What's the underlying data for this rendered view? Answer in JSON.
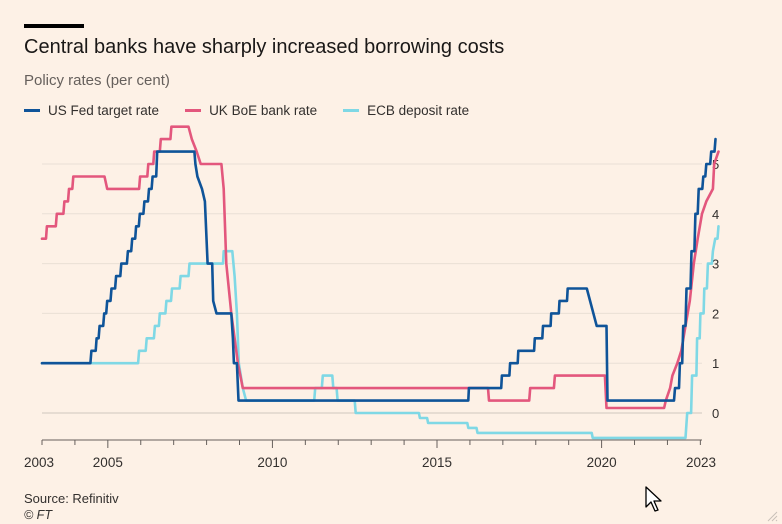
{
  "chart_data": {
    "type": "line",
    "title": "Central banks have sharply increased borrowing costs",
    "subtitle": "Policy rates (per cent)",
    "source": "Source: Refinitiv",
    "copyright": "© FT",
    "xlim": [
      2003,
      2023.05
    ],
    "ylim": [
      -0.5,
      5.6
    ],
    "x_ticks": [
      2003,
      2005,
      2010,
      2015,
      2020,
      2023
    ],
    "y_ticks": [
      0,
      1,
      2,
      3,
      4,
      5
    ],
    "grid": true,
    "legend_position": "top",
    "series": [
      {
        "name": "US Fed target rate",
        "color": "#0f5499",
        "points": [
          [
            2003.0,
            1.0
          ],
          [
            2003.75,
            1.0
          ],
          [
            2004.47,
            1.0
          ],
          [
            2004.5,
            1.25
          ],
          [
            2004.63,
            1.25
          ],
          [
            2004.66,
            1.5
          ],
          [
            2004.72,
            1.5
          ],
          [
            2004.75,
            1.75
          ],
          [
            2004.86,
            1.75
          ],
          [
            2004.89,
            2.0
          ],
          [
            2004.95,
            2.0
          ],
          [
            2004.98,
            2.25
          ],
          [
            2005.08,
            2.25
          ],
          [
            2005.11,
            2.5
          ],
          [
            2005.22,
            2.5
          ],
          [
            2005.25,
            2.75
          ],
          [
            2005.38,
            2.75
          ],
          [
            2005.41,
            3.0
          ],
          [
            2005.58,
            3.0
          ],
          [
            2005.61,
            3.25
          ],
          [
            2005.71,
            3.25
          ],
          [
            2005.74,
            3.5
          ],
          [
            2005.83,
            3.5
          ],
          [
            2005.86,
            3.75
          ],
          [
            2005.94,
            3.75
          ],
          [
            2005.97,
            4.0
          ],
          [
            2006.08,
            4.0
          ],
          [
            2006.11,
            4.25
          ],
          [
            2006.22,
            4.25
          ],
          [
            2006.25,
            4.5
          ],
          [
            2006.33,
            4.5
          ],
          [
            2006.36,
            4.75
          ],
          [
            2006.47,
            4.75
          ],
          [
            2006.5,
            5.25
          ],
          [
            2007.63,
            5.25
          ],
          [
            2007.66,
            5.0
          ],
          [
            2007.72,
            4.75
          ],
          [
            2007.86,
            4.5
          ],
          [
            2007.95,
            4.25
          ],
          [
            2008.03,
            3.0
          ],
          [
            2008.17,
            3.0
          ],
          [
            2008.2,
            2.25
          ],
          [
            2008.3,
            2.0
          ],
          [
            2008.75,
            2.0
          ],
          [
            2008.8,
            1.5
          ],
          [
            2008.83,
            1.0
          ],
          [
            2008.92,
            1.0
          ],
          [
            2008.97,
            0.25
          ],
          [
            2015.95,
            0.25
          ],
          [
            2015.97,
            0.5
          ],
          [
            2016.95,
            0.5
          ],
          [
            2016.97,
            0.75
          ],
          [
            2017.2,
            0.75
          ],
          [
            2017.22,
            1.0
          ],
          [
            2017.45,
            1.0
          ],
          [
            2017.47,
            1.25
          ],
          [
            2017.95,
            1.25
          ],
          [
            2017.97,
            1.5
          ],
          [
            2018.2,
            1.5
          ],
          [
            2018.22,
            1.75
          ],
          [
            2018.45,
            1.75
          ],
          [
            2018.47,
            2.0
          ],
          [
            2018.7,
            2.0
          ],
          [
            2018.72,
            2.25
          ],
          [
            2018.95,
            2.25
          ],
          [
            2018.97,
            2.5
          ],
          [
            2019.55,
            2.5
          ],
          [
            2019.75,
            2.0
          ],
          [
            2019.85,
            1.75
          ],
          [
            2020.15,
            1.75
          ],
          [
            2020.18,
            0.25
          ],
          [
            2022.2,
            0.25
          ],
          [
            2022.23,
            0.5
          ],
          [
            2022.35,
            0.5
          ],
          [
            2022.38,
            1.0
          ],
          [
            2022.45,
            1.0
          ],
          [
            2022.48,
            1.75
          ],
          [
            2022.55,
            1.75
          ],
          [
            2022.58,
            2.5
          ],
          [
            2022.7,
            2.5
          ],
          [
            2022.73,
            3.25
          ],
          [
            2022.82,
            3.25
          ],
          [
            2022.85,
            4.0
          ],
          [
            2022.92,
            4.0
          ],
          [
            2022.95,
            4.5
          ],
          [
            2023.06,
            4.5
          ],
          [
            2023.09,
            4.75
          ],
          [
            2023.15,
            4.75
          ],
          [
            2023.18,
            5.0
          ],
          [
            2023.3,
            5.0
          ],
          [
            2023.33,
            5.25
          ],
          [
            2023.43,
            5.25
          ],
          [
            2023.46,
            5.5
          ]
        ]
      },
      {
        "name": "UK BoE bank rate",
        "color": "#e3577d",
        "points": [
          [
            2003.0,
            3.5
          ],
          [
            2003.12,
            3.5
          ],
          [
            2003.15,
            3.75
          ],
          [
            2003.42,
            3.75
          ],
          [
            2003.45,
            4.0
          ],
          [
            2003.65,
            4.0
          ],
          [
            2003.68,
            4.25
          ],
          [
            2003.79,
            4.25
          ],
          [
            2003.82,
            4.5
          ],
          [
            2003.92,
            4.5
          ],
          [
            2003.95,
            4.75
          ],
          [
            2004.9,
            4.75
          ],
          [
            2004.98,
            4.5
          ],
          [
            2005.95,
            4.5
          ],
          [
            2005.98,
            4.75
          ],
          [
            2006.2,
            4.75
          ],
          [
            2006.23,
            5.0
          ],
          [
            2006.38,
            5.0
          ],
          [
            2006.41,
            5.25
          ],
          [
            2006.58,
            5.25
          ],
          [
            2006.61,
            5.5
          ],
          [
            2006.9,
            5.5
          ],
          [
            2006.93,
            5.75
          ],
          [
            2007.45,
            5.75
          ],
          [
            2007.55,
            5.5
          ],
          [
            2007.7,
            5.25
          ],
          [
            2007.82,
            5.0
          ],
          [
            2008.45,
            5.0
          ],
          [
            2008.52,
            4.5
          ],
          [
            2008.6,
            3.0
          ],
          [
            2008.75,
            2.0
          ],
          [
            2008.85,
            1.5
          ],
          [
            2008.95,
            1.0
          ],
          [
            2009.1,
            0.5
          ],
          [
            2016.55,
            0.5
          ],
          [
            2016.58,
            0.25
          ],
          [
            2017.8,
            0.25
          ],
          [
            2017.83,
            0.5
          ],
          [
            2018.55,
            0.5
          ],
          [
            2018.58,
            0.75
          ],
          [
            2020.1,
            0.75
          ],
          [
            2020.15,
            0.1
          ],
          [
            2021.9,
            0.1
          ],
          [
            2021.95,
            0.25
          ],
          [
            2022.08,
            0.5
          ],
          [
            2022.15,
            0.75
          ],
          [
            2022.3,
            1.0
          ],
          [
            2022.42,
            1.25
          ],
          [
            2022.55,
            1.75
          ],
          [
            2022.68,
            2.25
          ],
          [
            2022.8,
            3.0
          ],
          [
            2022.92,
            3.5
          ],
          [
            2023.05,
            4.0
          ],
          [
            2023.18,
            4.25
          ],
          [
            2023.38,
            4.5
          ],
          [
            2023.42,
            5.0
          ],
          [
            2023.55,
            5.25
          ]
        ]
      },
      {
        "name": "ECB deposit rate",
        "color": "#7fd8e5",
        "points": [
          [
            2003.0,
            1.0
          ],
          [
            2005.92,
            1.0
          ],
          [
            2005.95,
            1.25
          ],
          [
            2006.15,
            1.25
          ],
          [
            2006.18,
            1.5
          ],
          [
            2006.4,
            1.5
          ],
          [
            2006.43,
            1.75
          ],
          [
            2006.55,
            1.75
          ],
          [
            2006.58,
            2.0
          ],
          [
            2006.75,
            2.0
          ],
          [
            2006.78,
            2.25
          ],
          [
            2006.92,
            2.25
          ],
          [
            2006.95,
            2.5
          ],
          [
            2007.18,
            2.5
          ],
          [
            2007.21,
            2.75
          ],
          [
            2007.45,
            2.75
          ],
          [
            2007.48,
            3.0
          ],
          [
            2008.5,
            3.0
          ],
          [
            2008.52,
            3.25
          ],
          [
            2008.78,
            3.25
          ],
          [
            2008.85,
            2.75
          ],
          [
            2008.92,
            2.0
          ],
          [
            2008.98,
            1.0
          ],
          [
            2009.1,
            0.5
          ],
          [
            2009.2,
            0.25
          ],
          [
            2011.27,
            0.25
          ],
          [
            2011.3,
            0.5
          ],
          [
            2011.5,
            0.5
          ],
          [
            2011.53,
            0.75
          ],
          [
            2011.82,
            0.75
          ],
          [
            2011.85,
            0.5
          ],
          [
            2011.95,
            0.5
          ],
          [
            2011.98,
            0.25
          ],
          [
            2012.5,
            0.25
          ],
          [
            2012.53,
            0.0
          ],
          [
            2014.45,
            0.0
          ],
          [
            2014.48,
            -0.1
          ],
          [
            2014.7,
            -0.1
          ],
          [
            2014.73,
            -0.2
          ],
          [
            2015.92,
            -0.2
          ],
          [
            2015.95,
            -0.3
          ],
          [
            2016.2,
            -0.3
          ],
          [
            2016.23,
            -0.4
          ],
          [
            2019.7,
            -0.4
          ],
          [
            2019.73,
            -0.5
          ],
          [
            2022.55,
            -0.5
          ],
          [
            2022.6,
            0.0
          ],
          [
            2022.72,
            0.0
          ],
          [
            2022.75,
            0.75
          ],
          [
            2022.88,
            0.75
          ],
          [
            2022.9,
            1.5
          ],
          [
            2022.98,
            1.5
          ],
          [
            2023.0,
            2.0
          ],
          [
            2023.1,
            2.0
          ],
          [
            2023.12,
            2.5
          ],
          [
            2023.2,
            2.5
          ],
          [
            2023.23,
            3.0
          ],
          [
            2023.35,
            3.0
          ],
          [
            2023.38,
            3.25
          ],
          [
            2023.45,
            3.5
          ],
          [
            2023.52,
            3.5
          ],
          [
            2023.55,
            3.75
          ]
        ]
      }
    ]
  }
}
